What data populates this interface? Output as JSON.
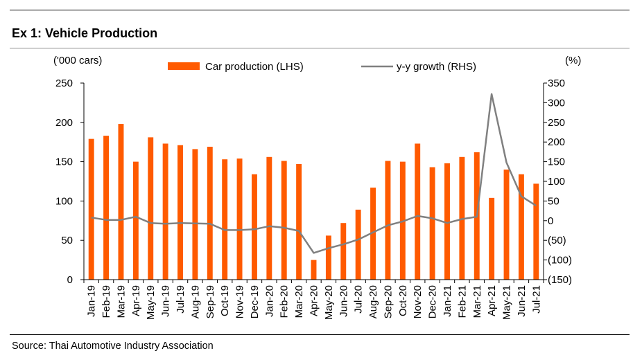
{
  "title": "Ex 1: Vehicle Production",
  "source": "Source: Thai Automotive Industry Association",
  "chart_data": {
    "type": "bar",
    "title": "Ex 1: Vehicle Production",
    "left_axis_unit": "('000 cars)",
    "right_axis_unit": "(%)",
    "categories": [
      "Jan-19",
      "Feb-19",
      "Mar-19",
      "Apr-19",
      "May-19",
      "Jun-19",
      "Jul-19",
      "Aug-19",
      "Sep-19",
      "Oct-19",
      "Nov-19",
      "Dec-19",
      "Jan-20",
      "Feb-20",
      "Mar-20",
      "Apr-20",
      "May-20",
      "Jun-20",
      "Jul-20",
      "Aug-20",
      "Sep-20",
      "Oct-20",
      "Nov-20",
      "Dec-20",
      "Jan-21",
      "Feb-21",
      "Mar-21",
      "Apr-21",
      "May-21",
      "Jun-21",
      "Jul-21"
    ],
    "series": [
      {
        "name": "Car production (LHS)",
        "type": "bar",
        "axis": "left",
        "color": "#FF5A00",
        "values": [
          179,
          183,
          198,
          150,
          181,
          173,
          171,
          166,
          169,
          153,
          154,
          134,
          156,
          151,
          147,
          25,
          56,
          72,
          89,
          117,
          151,
          150,
          173,
          143,
          148,
          156,
          162,
          104,
          140,
          134,
          122
        ]
      },
      {
        "name": "y-y growth (RHS)",
        "type": "line",
        "axis": "right",
        "color": "#808080",
        "values": [
          8,
          2,
          2,
          10,
          -6,
          -8,
          -6,
          -7,
          -8,
          -24,
          -24,
          -22,
          -14,
          -18,
          -26,
          -82,
          -70,
          -60,
          -48,
          -30,
          -12,
          -2,
          12,
          6,
          -6,
          4,
          10,
          322,
          148,
          62,
          38
        ]
      }
    ],
    "ylim_left": [
      0,
      250
    ],
    "yticks_left": [
      "0",
      "50",
      "100",
      "150",
      "200",
      "250"
    ],
    "ylim_right": [
      -150,
      350
    ],
    "yticks_right": [
      "(150)",
      "(100)",
      "(50)",
      "0",
      "50",
      "100",
      "150",
      "200",
      "250",
      "300",
      "350"
    ],
    "grid": false,
    "legend": "top-center"
  }
}
